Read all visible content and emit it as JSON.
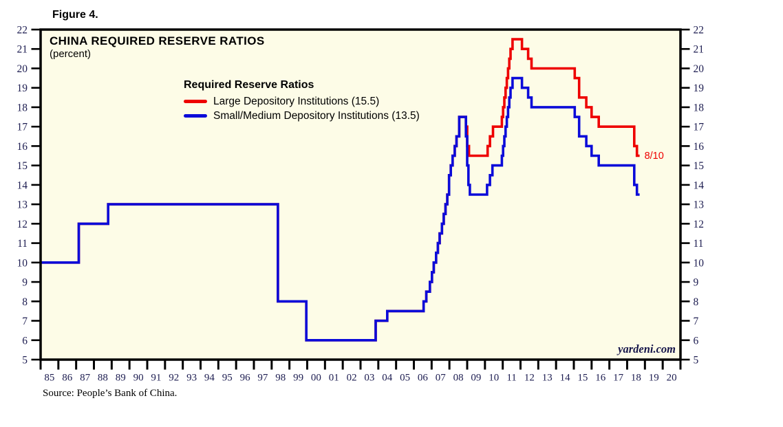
{
  "figure_label": "Figure 4.",
  "chart": {
    "title": "CHINA REQUIRED RESERVE RATIOS",
    "subtitle": "(percent)"
  },
  "legend": {
    "title": "Required Reserve Ratios",
    "items": [
      {
        "label": "Large Depository Institutions (15.5)",
        "color": "#ee0000"
      },
      {
        "label": "Small/Medium Depository Institutions (13.5)",
        "color": "#0b0bd9"
      }
    ]
  },
  "annotation": {
    "label": "8/10",
    "color": "#ee0000"
  },
  "watermark": "yardeni.com",
  "source": "Source: People’s Bank of China.",
  "colors": {
    "plot_bg": "#fdfce7",
    "frame": "#000000",
    "axis_text": "#1c1c50",
    "large_line": "#ee0000",
    "small_line": "#0b0bd9"
  },
  "chart_data": {
    "type": "line",
    "subtype": "step",
    "title": "CHINA REQUIRED RESERVE RATIOS",
    "ylabel": "percent",
    "x_range": [
      1985,
      2021
    ],
    "y_range": [
      5,
      22
    ],
    "grid": false,
    "legend_position": "top-center-inside",
    "y_ticks": [
      5,
      6,
      7,
      8,
      9,
      10,
      11,
      12,
      13,
      14,
      15,
      16,
      17,
      18,
      19,
      20,
      21,
      22
    ],
    "x_tick_labels": [
      "85",
      "86",
      "87",
      "88",
      "89",
      "90",
      "91",
      "92",
      "93",
      "94",
      "95",
      "96",
      "97",
      "98",
      "99",
      "00",
      "01",
      "02",
      "03",
      "04",
      "05",
      "06",
      "07",
      "08",
      "09",
      "10",
      "11",
      "12",
      "13",
      "14",
      "15",
      "16",
      "17",
      "18",
      "19",
      "20"
    ],
    "latest_observation_label": "8/10",
    "series": [
      {
        "name": "Large Depository Institutions",
        "current_value": 15.5,
        "color": "#ee0000",
        "points": [
          [
            1985.0,
            10
          ],
          [
            1987.15,
            12
          ],
          [
            1988.8,
            13
          ],
          [
            1998.35,
            8
          ],
          [
            1999.95,
            6
          ],
          [
            2003.85,
            7
          ],
          [
            2004.5,
            7.5
          ],
          [
            2006.55,
            8
          ],
          [
            2006.7,
            8.5
          ],
          [
            2006.9,
            9
          ],
          [
            2007.02,
            9.5
          ],
          [
            2007.12,
            10
          ],
          [
            2007.25,
            10.5
          ],
          [
            2007.35,
            11
          ],
          [
            2007.45,
            11.5
          ],
          [
            2007.58,
            12
          ],
          [
            2007.68,
            12.5
          ],
          [
            2007.78,
            13
          ],
          [
            2007.88,
            13.5
          ],
          [
            2007.98,
            14.5
          ],
          [
            2008.08,
            15
          ],
          [
            2008.18,
            15.5
          ],
          [
            2008.3,
            16
          ],
          [
            2008.4,
            16.5
          ],
          [
            2008.55,
            17.5
          ],
          [
            2008.93,
            17
          ],
          [
            2009.0,
            16
          ],
          [
            2009.1,
            15.5
          ],
          [
            2010.15,
            16
          ],
          [
            2010.28,
            16.5
          ],
          [
            2010.45,
            17
          ],
          [
            2010.95,
            17.5
          ],
          [
            2011.02,
            18
          ],
          [
            2011.09,
            18.5
          ],
          [
            2011.16,
            19
          ],
          [
            2011.23,
            19.5
          ],
          [
            2011.3,
            20
          ],
          [
            2011.37,
            20.5
          ],
          [
            2011.44,
            21
          ],
          [
            2011.55,
            21.5
          ],
          [
            2012.08,
            21
          ],
          [
            2012.43,
            20.5
          ],
          [
            2012.62,
            20
          ],
          [
            2015.05,
            19.5
          ],
          [
            2015.3,
            18.5
          ],
          [
            2015.7,
            18
          ],
          [
            2016.0,
            17.5
          ],
          [
            2016.4,
            17
          ],
          [
            2018.4,
            16
          ],
          [
            2018.55,
            15.5
          ],
          [
            2018.7,
            15.5
          ]
        ]
      },
      {
        "name": "Small/Medium Depository Institutions",
        "current_value": 13.5,
        "color": "#0b0bd9",
        "points": [
          [
            1985.0,
            10
          ],
          [
            1987.15,
            12
          ],
          [
            1988.8,
            13
          ],
          [
            1998.35,
            8
          ],
          [
            1999.95,
            6
          ],
          [
            2003.85,
            7
          ],
          [
            2004.5,
            7.5
          ],
          [
            2006.55,
            8
          ],
          [
            2006.7,
            8.5
          ],
          [
            2006.9,
            9
          ],
          [
            2007.02,
            9.5
          ],
          [
            2007.12,
            10
          ],
          [
            2007.25,
            10.5
          ],
          [
            2007.35,
            11
          ],
          [
            2007.45,
            11.5
          ],
          [
            2007.58,
            12
          ],
          [
            2007.68,
            12.5
          ],
          [
            2007.78,
            13
          ],
          [
            2007.88,
            13.5
          ],
          [
            2007.98,
            14.5
          ],
          [
            2008.08,
            15
          ],
          [
            2008.18,
            15.5
          ],
          [
            2008.3,
            16
          ],
          [
            2008.4,
            16.5
          ],
          [
            2008.55,
            17.5
          ],
          [
            2008.93,
            16.5
          ],
          [
            2009.0,
            15
          ],
          [
            2009.07,
            14
          ],
          [
            2009.15,
            13.5
          ],
          [
            2010.12,
            14
          ],
          [
            2010.28,
            14.5
          ],
          [
            2010.42,
            15
          ],
          [
            2010.95,
            15.5
          ],
          [
            2011.02,
            16
          ],
          [
            2011.09,
            16.5
          ],
          [
            2011.16,
            17
          ],
          [
            2011.23,
            17.5
          ],
          [
            2011.3,
            18
          ],
          [
            2011.37,
            18.5
          ],
          [
            2011.44,
            19
          ],
          [
            2011.55,
            19.5
          ],
          [
            2012.08,
            19
          ],
          [
            2012.43,
            18.5
          ],
          [
            2012.62,
            18
          ],
          [
            2015.05,
            17.5
          ],
          [
            2015.3,
            16.5
          ],
          [
            2015.7,
            16
          ],
          [
            2016.0,
            15.5
          ],
          [
            2016.4,
            15
          ],
          [
            2018.4,
            14
          ],
          [
            2018.55,
            13.5
          ],
          [
            2018.7,
            13.5
          ]
        ]
      }
    ]
  }
}
